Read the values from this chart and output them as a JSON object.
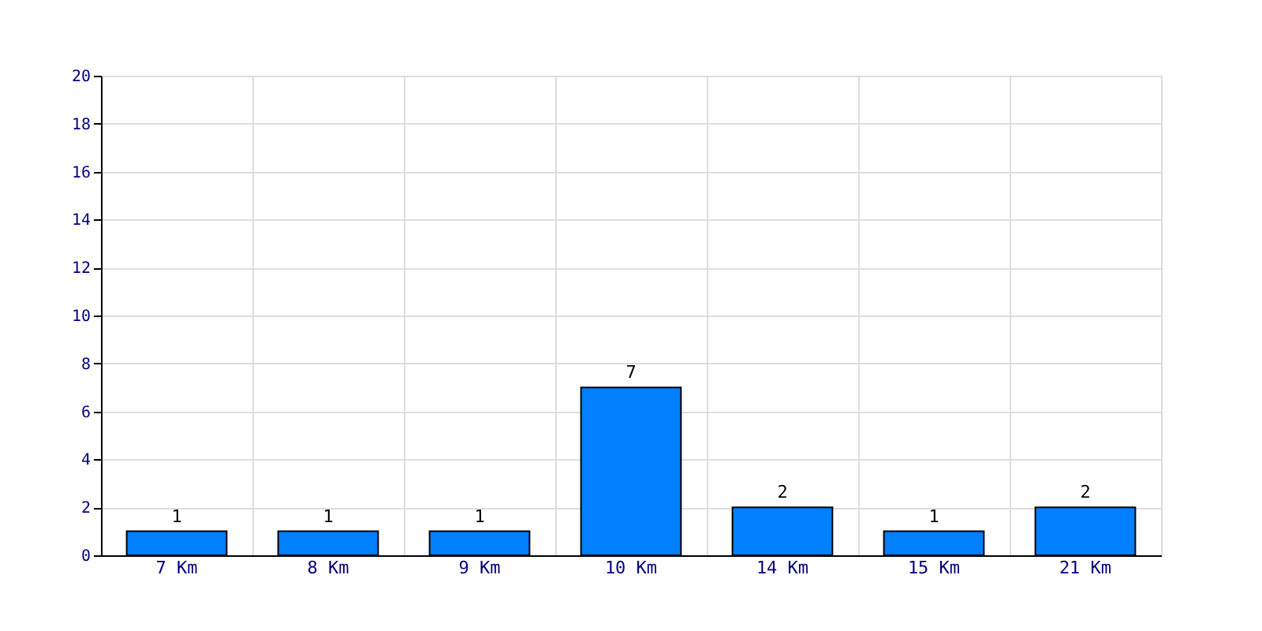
{
  "chart_data": {
    "type": "bar",
    "categories": [
      "7 Km",
      "8 Km",
      "9 Km",
      "10 Km",
      "14 Km",
      "15 Km",
      "21 Km"
    ],
    "values": [
      1,
      1,
      1,
      7,
      2,
      1,
      2
    ],
    "color": "#0080ff",
    "ylim": [
      0,
      20
    ],
    "yticks": [
      0,
      2,
      4,
      6,
      8,
      10,
      12,
      14,
      16,
      18,
      20
    ],
    "grid": true,
    "data_labels": true
  }
}
